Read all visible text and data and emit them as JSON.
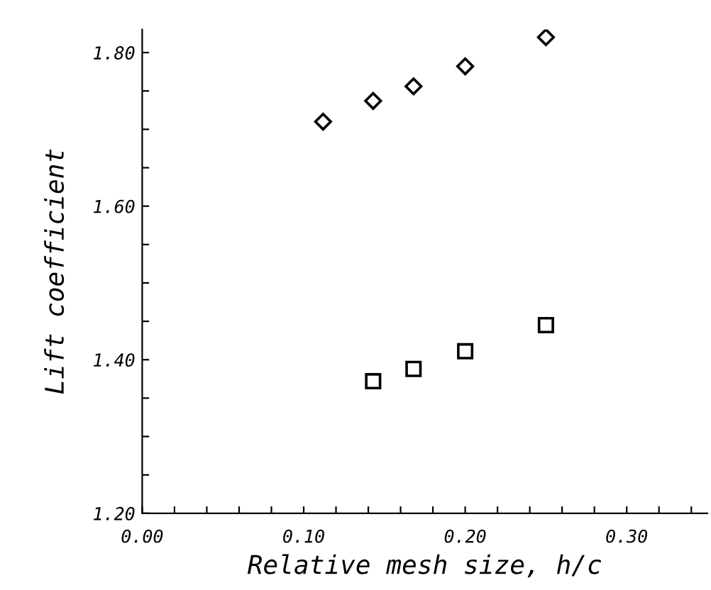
{
  "chart_data": {
    "type": "scatter",
    "xlabel": "Relative mesh size, h/c",
    "ylabel": "Lift coefficient",
    "xlim": [
      0,
      0.35
    ],
    "ylim": [
      1.2,
      1.83
    ],
    "xticks": [
      {
        "value": 0.0,
        "label": "0.00"
      },
      {
        "value": 0.02,
        "label": null
      },
      {
        "value": 0.04,
        "label": null
      },
      {
        "value": 0.06,
        "label": null
      },
      {
        "value": 0.08,
        "label": null
      },
      {
        "value": 0.1,
        "label": "0.10"
      },
      {
        "value": 0.12,
        "label": null
      },
      {
        "value": 0.14,
        "label": null
      },
      {
        "value": 0.16,
        "label": null
      },
      {
        "value": 0.18,
        "label": null
      },
      {
        "value": 0.2,
        "label": "0.20"
      },
      {
        "value": 0.22,
        "label": null
      },
      {
        "value": 0.24,
        "label": null
      },
      {
        "value": 0.26,
        "label": null
      },
      {
        "value": 0.28,
        "label": null
      },
      {
        "value": 0.3,
        "label": "0.30"
      },
      {
        "value": 0.32,
        "label": null
      },
      {
        "value": 0.34,
        "label": null
      }
    ],
    "yticks": [
      {
        "value": 1.2,
        "label": "1.20"
      },
      {
        "value": 1.25,
        "label": null
      },
      {
        "value": 1.3,
        "label": null
      },
      {
        "value": 1.35,
        "label": null
      },
      {
        "value": 1.4,
        "label": "1.40"
      },
      {
        "value": 1.45,
        "label": null
      },
      {
        "value": 1.5,
        "label": null
      },
      {
        "value": 1.55,
        "label": null
      },
      {
        "value": 1.6,
        "label": "1.60"
      },
      {
        "value": 1.65,
        "label": null
      },
      {
        "value": 1.7,
        "label": null
      },
      {
        "value": 1.75,
        "label": null
      },
      {
        "value": 1.8,
        "label": "1.80"
      }
    ],
    "grid": false,
    "series": [
      {
        "color": "#000000",
        "marker": "diamond",
        "x": [
          0.112,
          0.143,
          0.168,
          0.2,
          0.25
        ],
        "values": [
          1.71,
          1.737,
          1.756,
          1.782,
          1.82
        ]
      },
      {
        "color": "#000000",
        "marker": "square",
        "x": [
          0.143,
          0.168,
          0.2,
          0.25
        ],
        "values": [
          1.372,
          1.388,
          1.411,
          1.445
        ]
      }
    ]
  }
}
